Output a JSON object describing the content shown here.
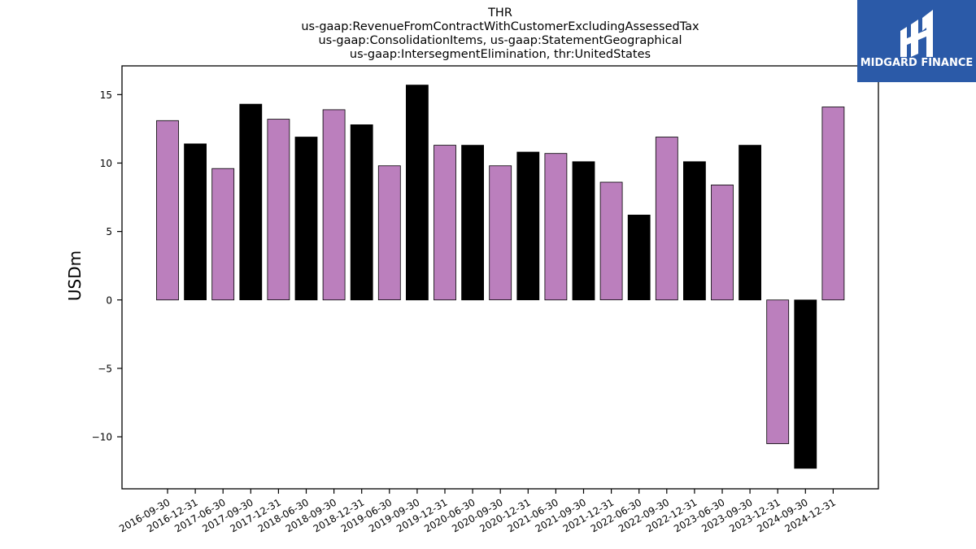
{
  "brand": {
    "name": "MIDGARD FINANCE",
    "bg_color": "#2b5aa8"
  },
  "chart_data": {
    "type": "bar",
    "title_lines": [
      "THR",
      "us-gaap:RevenueFromContractWithCustomerExcludingAssessedTax",
      "us-gaap:ConsolidationItems, us-gaap:StatementGeographical",
      "us-gaap:IntersegmentElimination, thr:UnitedStates"
    ],
    "xlabel": "",
    "ylabel": "USDm",
    "ylim": [
      -13.8,
      17.1
    ],
    "yticks": [
      -10,
      -5,
      0,
      5,
      10,
      15
    ],
    "grid": false,
    "colors": {
      "odd": "#bb7fbd",
      "even": "#000000",
      "edge": "#000000"
    },
    "categories": [
      "2016-09-30",
      "2016-12-31",
      "2017-06-30",
      "2017-09-30",
      "2017-12-31",
      "2018-06-30",
      "2018-09-30",
      "2018-12-31",
      "2019-06-30",
      "2019-09-30",
      "2019-12-31",
      "2020-06-30",
      "2020-09-30",
      "2020-12-31",
      "2021-06-30",
      "2021-09-30",
      "2021-12-31",
      "2022-06-30",
      "2022-09-30",
      "2022-12-31",
      "2023-06-30",
      "2023-09-30",
      "2023-12-31",
      "2024-09-30",
      "2024-12-31"
    ],
    "values": [
      13.1,
      11.4,
      9.6,
      14.3,
      13.2,
      11.9,
      13.9,
      12.8,
      9.8,
      15.7,
      11.3,
      11.3,
      9.8,
      10.8,
      10.7,
      10.1,
      8.6,
      6.2,
      11.9,
      10.1,
      8.4,
      11.3,
      -10.5,
      -12.3,
      14.1
    ]
  }
}
